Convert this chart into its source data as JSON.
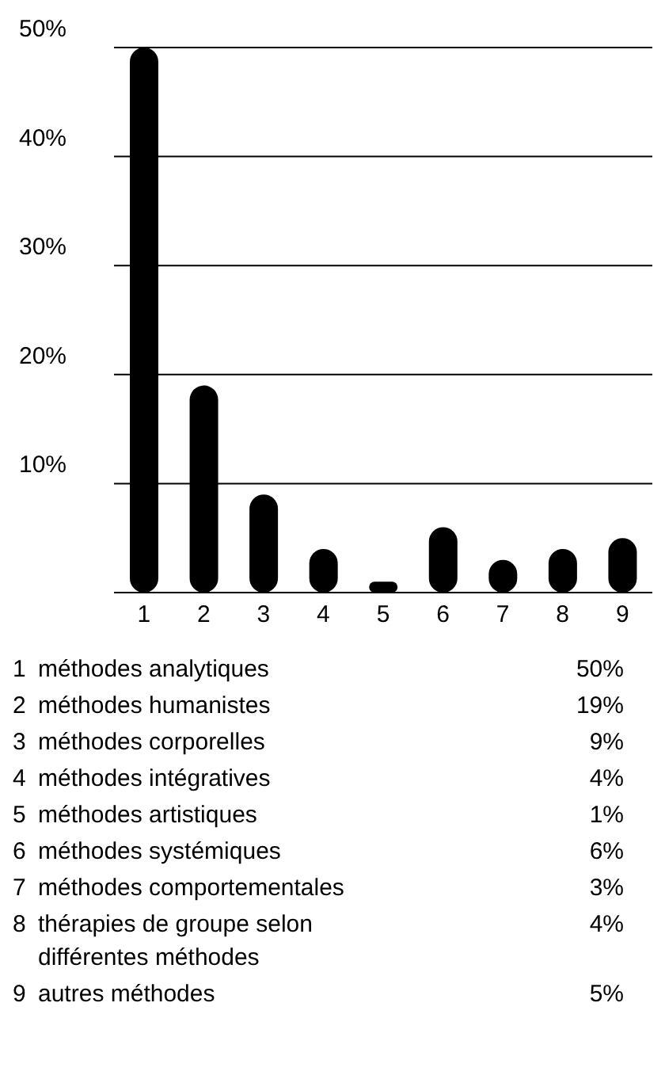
{
  "chart_data": {
    "type": "bar",
    "categories": [
      "1",
      "2",
      "3",
      "4",
      "5",
      "6",
      "7",
      "8",
      "9"
    ],
    "values": [
      50,
      19,
      9,
      4,
      1,
      6,
      3,
      4,
      5
    ],
    "color": "#000000",
    "ylim": [
      0,
      50
    ],
    "yticks": [
      {
        "value": 10,
        "label": "10%"
      },
      {
        "value": 20,
        "label": "20%"
      },
      {
        "value": 30,
        "label": "30%"
      },
      {
        "value": 40,
        "label": "40%"
      },
      {
        "value": 50,
        "label": "50%"
      }
    ],
    "grid": "y",
    "annotations": [
      "méthodes analytiques",
      "méthodes humanistes",
      "méthodes corporelles",
      "méthodes intégratives",
      "méthodes artistiques",
      "méthodes systémiques",
      "méthodes comportementales",
      "thérapies de groupe selon différentes méthodes",
      "autres méthodes",
      "50%",
      "19%",
      "9%",
      "4%",
      "1%",
      "6%",
      "3%",
      "4%",
      "5%"
    ]
  }
}
